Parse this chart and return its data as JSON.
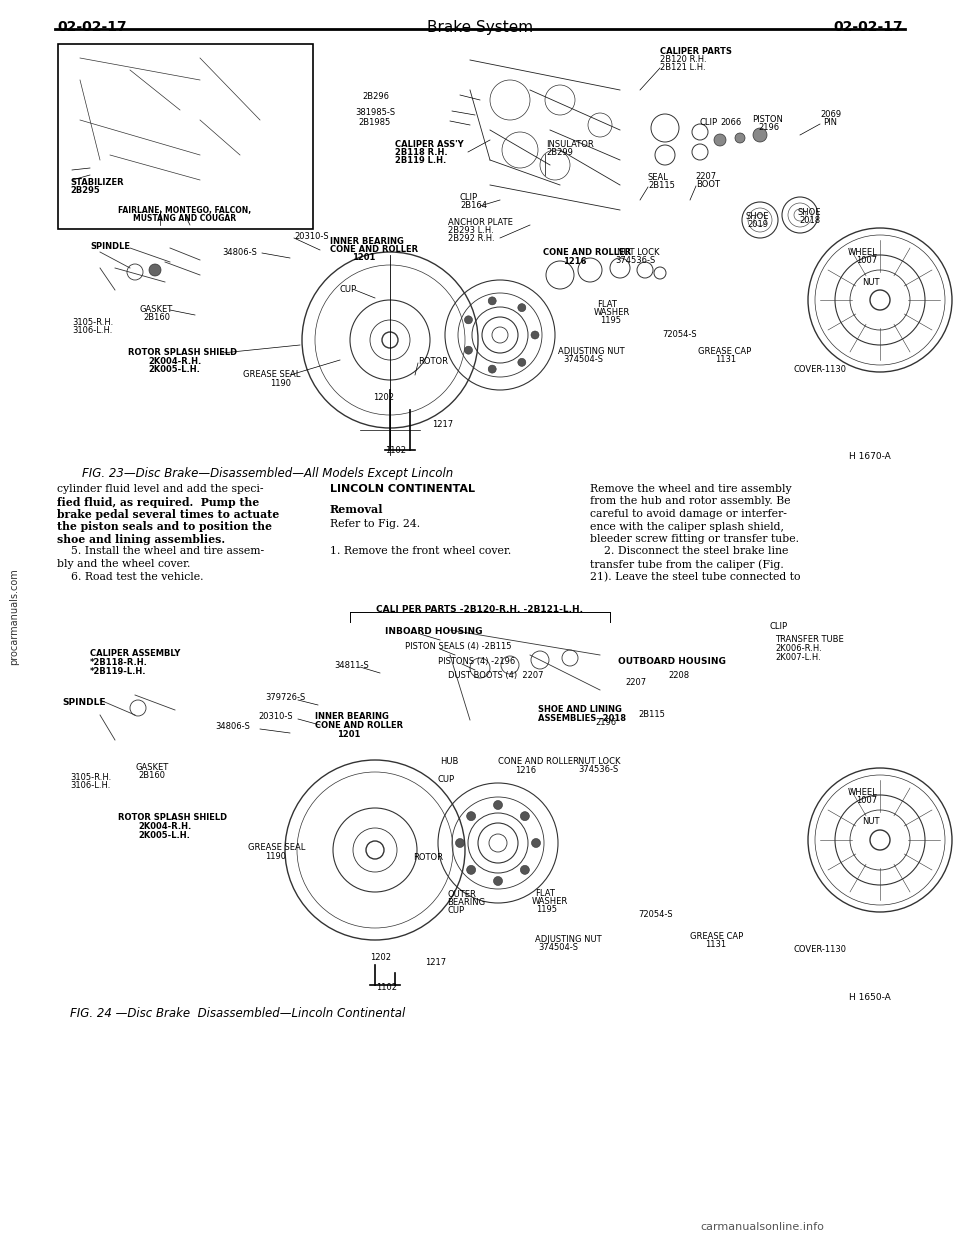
{
  "page_color": "#ffffff",
  "header_left": "02-02-17",
  "header_center": "Brake System",
  "header_right": "02-02-17",
  "fig23_caption": "FIG. 23—Disc Brake—Disassembled—All Models Except Lincoln",
  "fig24_caption": "FIG. 24 —Disc Brake  Disassembled—Lincoln Continental",
  "watermark": "carmanualsonline.info",
  "sidebar_text": "procarmanuals.com",
  "body_left_col": [
    "cylinder fluid level and add the speci-",
    "fied fluid, as required.  Pump the",
    "brake pedal several times to actuate",
    "the piston seals and to position the",
    "shoe and lining assemblies.",
    "    5. Install the wheel and tire assem-",
    "bly and the wheel cover.",
    "    6. Road test the vehicle."
  ],
  "body_left_bold": [
    false,
    true,
    true,
    true,
    true,
    false,
    false,
    false
  ],
  "body_center_col_title": "LINCOLN CONTINENTAL",
  "body_center_col_subtitle": "Removal",
  "body_center_col": [
    "Refer to Fig. 24.",
    "",
    "1. Remove the front wheel cover."
  ],
  "body_right_col": [
    "Remove the wheel and tire assembly",
    "from the hub and rotor assembly. Be",
    "careful to avoid damage or interfer-",
    "ence with the caliper splash shield,",
    "bleeder screw fitting or transfer tube.",
    "    2. Disconnect the steel brake line",
    "transfer tube from the caliper (Fig.",
    "21). Leave the steel tube connected to"
  ],
  "fig_width": 9.6,
  "fig_height": 12.35
}
